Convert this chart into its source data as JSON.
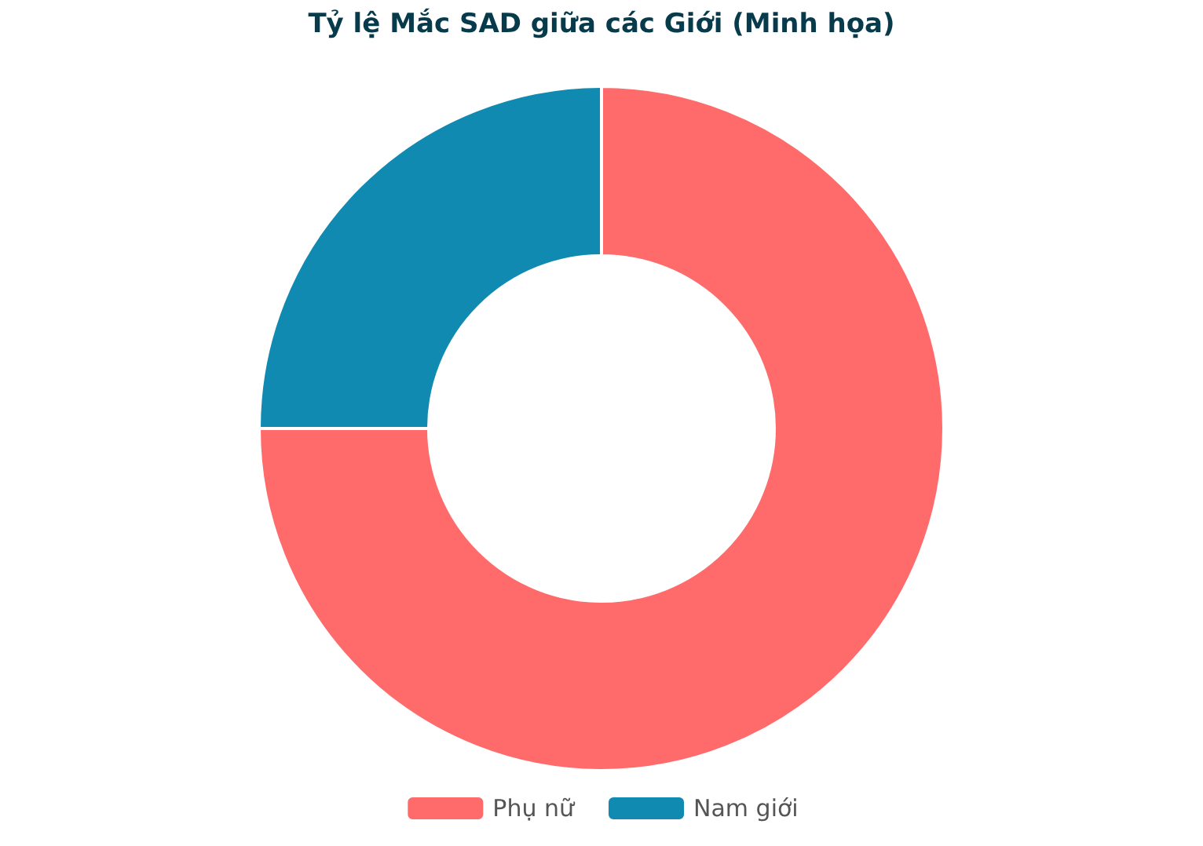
{
  "chart_data": {
    "type": "donut",
    "title": "Tỷ lệ Mắc SAD giữa các Giới (Minh họa)",
    "categories": [
      "Phụ nữ",
      "Nam giới"
    ],
    "values": [
      75,
      25
    ],
    "colors": [
      "#ff6b6b",
      "#118ab2"
    ],
    "legend": "bottom"
  }
}
